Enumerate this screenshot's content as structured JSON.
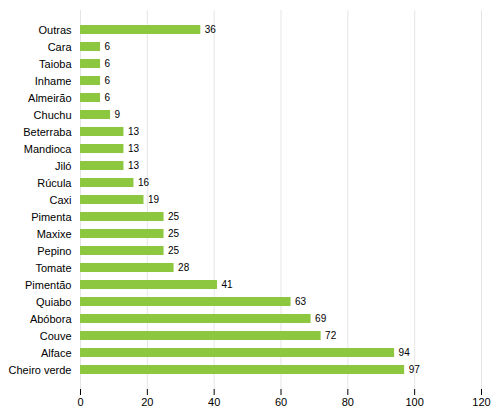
{
  "chart_data": {
    "type": "bar",
    "orientation": "horizontal",
    "categories": [
      "Cheiro verde",
      "Alface",
      "Couve",
      "Abóbora",
      "Quiabo",
      "Pimentão",
      "Tomate",
      "Pepino",
      "Maxixe",
      "Pimenta",
      "Caxi",
      "Rúcula",
      "Jiló",
      "Mandioca",
      "Beterraba",
      "Chuchu",
      "Almeirão",
      "Inhame",
      "Taioba",
      "Cara",
      "Outras"
    ],
    "values": [
      97,
      94,
      72,
      69,
      63,
      41,
      28,
      25,
      25,
      25,
      19,
      16,
      13,
      13,
      13,
      9,
      6,
      6,
      6,
      6,
      36
    ],
    "color": "#8dc63f",
    "xlim": [
      0,
      120
    ],
    "xticks": [
      0,
      20,
      40,
      60,
      80,
      100,
      120
    ],
    "grid": true,
    "data_labels": true
  }
}
